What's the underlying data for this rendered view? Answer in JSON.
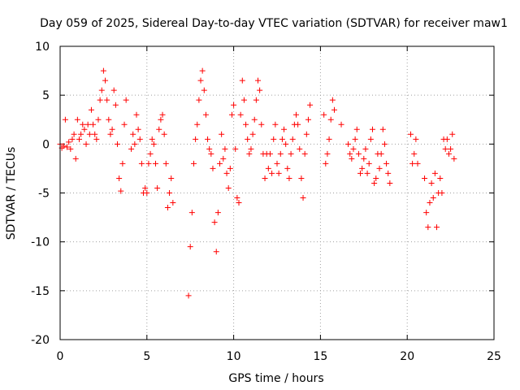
{
  "chart_data": {
    "type": "scatter",
    "title": "Day 059 of 2025, Sidereal Day-to-day VTEC variation (SDTVAR) for receiver maw1",
    "xlabel": "GPS time / hours",
    "ylabel": "SDTVAR / TECUs",
    "xlim": [
      0,
      25
    ],
    "ylim": [
      -20,
      10
    ],
    "xticks": [
      0,
      5,
      10,
      15,
      20,
      25
    ],
    "yticks": [
      -20,
      -15,
      -10,
      -5,
      0,
      5,
      10
    ],
    "xtick_labels": [
      "0",
      "5",
      "10",
      "15",
      "20",
      "25"
    ],
    "ytick_labels": [
      "-20",
      "-15",
      "-10",
      "-5",
      "0",
      "5",
      "10"
    ],
    "grid": true,
    "marker": "+",
    "marker_color": "#ff0000",
    "series": [
      {
        "name": "SDTVAR",
        "x": [
          0.0,
          0.1,
          0.2,
          0.3,
          0.4,
          0.5,
          0.6,
          0.7,
          0.8,
          0.9,
          1.0,
          1.1,
          1.2,
          1.3,
          1.4,
          1.5,
          1.6,
          1.7,
          1.8,
          1.9,
          2.0,
          2.1,
          2.2,
          2.3,
          2.4,
          2.5,
          2.6,
          2.7,
          2.8,
          2.9,
          3.0,
          3.1,
          3.2,
          3.3,
          3.4,
          3.5,
          3.6,
          3.7,
          3.8,
          4.1,
          4.2,
          4.3,
          4.4,
          4.5,
          4.6,
          4.7,
          4.8,
          4.9,
          5.0,
          5.1,
          5.2,
          5.3,
          5.4,
          5.5,
          5.6,
          5.7,
          5.8,
          5.9,
          6.0,
          6.1,
          6.2,
          6.3,
          6.4,
          6.5,
          7.4,
          7.5,
          7.6,
          7.7,
          7.8,
          7.9,
          8.0,
          8.1,
          8.2,
          8.3,
          8.4,
          8.5,
          8.6,
          8.7,
          8.8,
          8.9,
          9.0,
          9.1,
          9.2,
          9.3,
          9.4,
          9.5,
          9.6,
          9.7,
          9.8,
          9.9,
          10.0,
          10.1,
          10.2,
          10.3,
          10.4,
          10.5,
          10.6,
          10.7,
          10.8,
          10.9,
          11.0,
          11.1,
          11.2,
          11.3,
          11.4,
          11.5,
          11.6,
          11.7,
          11.8,
          11.9,
          12.0,
          12.1,
          12.2,
          12.3,
          12.4,
          12.5,
          12.6,
          12.7,
          12.8,
          12.9,
          13.0,
          13.1,
          13.2,
          13.3,
          13.4,
          13.5,
          13.6,
          13.7,
          13.8,
          13.9,
          14.0,
          14.1,
          14.2,
          14.3,
          14.4,
          15.2,
          15.3,
          15.4,
          15.5,
          15.6,
          15.7,
          15.8,
          16.2,
          16.6,
          16.7,
          16.8,
          16.9,
          17.0,
          17.1,
          17.2,
          17.3,
          17.4,
          17.5,
          17.6,
          17.7,
          17.8,
          17.9,
          18.0,
          18.1,
          18.2,
          18.3,
          18.4,
          18.5,
          18.6,
          18.7,
          18.8,
          18.9,
          19.0,
          20.2,
          20.3,
          20.4,
          20.5,
          20.6,
          21.0,
          21.1,
          21.2,
          21.3,
          21.4,
          21.5,
          21.6,
          21.7,
          21.8,
          21.9,
          22.0,
          22.1,
          22.2,
          22.3,
          22.4,
          22.5,
          22.6,
          22.7
        ],
        "y": [
          0.0,
          -0.4,
          -0.2,
          2.5,
          -0.3,
          0.2,
          -0.5,
          0.5,
          1.0,
          -1.5,
          2.5,
          0.5,
          1.0,
          2.0,
          1.5,
          0.0,
          2.0,
          1.0,
          3.5,
          2.0,
          1.0,
          0.5,
          2.5,
          4.5,
          5.5,
          7.5,
          6.5,
          4.5,
          2.5,
          1.0,
          1.5,
          5.5,
          4.0,
          0.0,
          -3.5,
          -4.8,
          -2.0,
          2.0,
          4.5,
          -0.5,
          1.0,
          0.0,
          3.0,
          1.5,
          0.5,
          -2.0,
          -5.0,
          -4.5,
          -5.0,
          -2.0,
          -1.0,
          0.5,
          0.0,
          -2.0,
          -4.5,
          1.5,
          2.5,
          3.0,
          1.0,
          -2.0,
          -6.5,
          -5.0,
          -3.5,
          -6.0,
          -15.5,
          -10.5,
          -7.0,
          -2.0,
          0.5,
          2.0,
          4.5,
          6.5,
          7.5,
          5.5,
          3.0,
          0.5,
          -0.5,
          -1.0,
          -2.5,
          -8.0,
          -11.0,
          -7.0,
          -2.0,
          1.0,
          -1.5,
          -0.5,
          -3.0,
          -4.5,
          -2.5,
          3.0,
          4.0,
          -0.5,
          -5.5,
          -6.0,
          3.0,
          6.5,
          4.5,
          2.0,
          0.5,
          -1.0,
          -0.5,
          1.0,
          2.5,
          4.5,
          6.5,
          5.5,
          2.0,
          -1.0,
          -3.5,
          -1.0,
          -2.5,
          -1.0,
          -3.0,
          0.5,
          2.0,
          -2.0,
          -3.0,
          -1.0,
          0.5,
          1.5,
          0.0,
          -2.5,
          -3.5,
          -1.0,
          0.5,
          2.0,
          3.0,
          2.0,
          -0.5,
          -3.5,
          -5.5,
          -1.0,
          1.0,
          2.5,
          4.0,
          3.0,
          -2.0,
          -1.0,
          0.5,
          2.5,
          4.5,
          3.5,
          2.0,
          0.0,
          -1.0,
          -1.5,
          -0.5,
          0.5,
          1.5,
          -1.0,
          -3.0,
          -2.5,
          -1.5,
          -0.5,
          -3.0,
          -2.0,
          0.5,
          1.5,
          -4.0,
          -3.5,
          -1.0,
          -2.5,
          -1.0,
          1.5,
          0.0,
          -2.0,
          -3.0,
          -4.0,
          1.0,
          -2.0,
          -1.0,
          0.5,
          -2.0,
          -3.5,
          -7.0,
          -8.5,
          -6.0,
          -4.0,
          -5.5,
          -3.0,
          -8.5,
          -5.0,
          -3.5,
          -5.0,
          0.5,
          -0.5,
          0.5,
          -1.0,
          -0.5,
          1.0,
          -1.5
        ]
      }
    ]
  }
}
